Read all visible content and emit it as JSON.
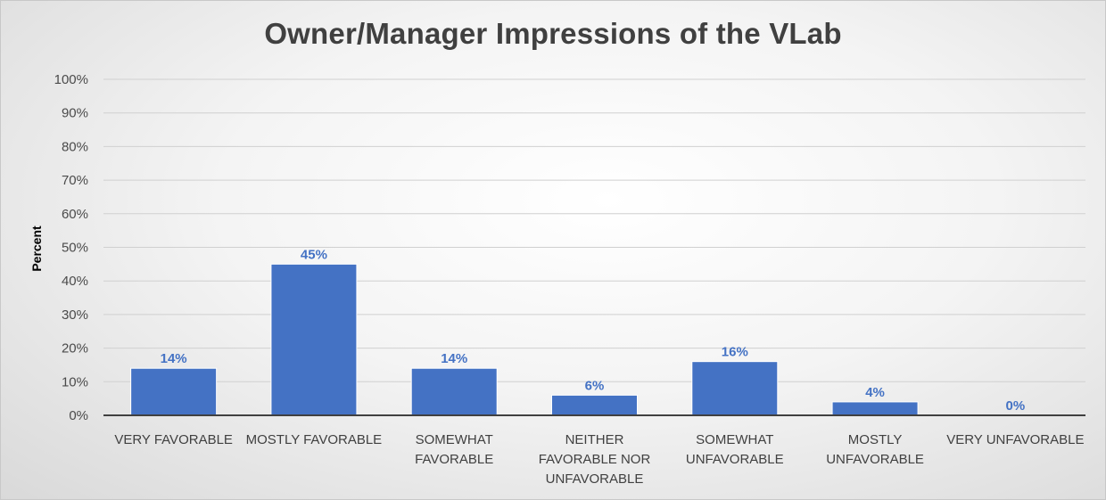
{
  "chart_data": {
    "type": "bar",
    "title": "Owner/Manager Impressions of the VLab",
    "ylabel": "Percent",
    "xlabel": "",
    "categories": [
      [
        "VERY FAVORABLE"
      ],
      [
        "MOSTLY FAVORABLE"
      ],
      [
        "SOMEWHAT",
        "FAVORABLE"
      ],
      [
        "NEITHER",
        "FAVORABLE NOR",
        "UNFAVORABLE"
      ],
      [
        "SOMEWHAT",
        "UNFAVORABLE"
      ],
      [
        "MOSTLY",
        "UNFAVORABLE"
      ],
      [
        "VERY UNFAVORABLE"
      ]
    ],
    "values": [
      14,
      45,
      14,
      6,
      16,
      4,
      0
    ],
    "data_labels": [
      "14%",
      "45%",
      "14%",
      "6%",
      "16%",
      "4%",
      "0%"
    ],
    "ylim": [
      0,
      100
    ],
    "yticks": [
      0,
      10,
      20,
      30,
      40,
      50,
      60,
      70,
      80,
      90,
      100
    ],
    "ytick_labels": [
      "0%",
      "10%",
      "20%",
      "30%",
      "40%",
      "50%",
      "60%",
      "70%",
      "80%",
      "90%",
      "100%"
    ],
    "grid": true,
    "legend": "none",
    "bar_color": "#4472c4",
    "grid_color": "#d0d0d0",
    "axis_color": "#404040"
  }
}
